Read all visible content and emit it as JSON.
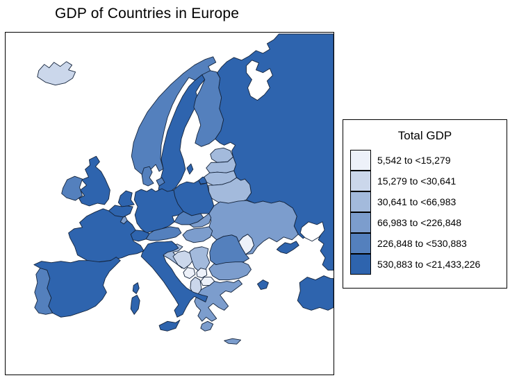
{
  "title": "GDP of Countries in Europe",
  "legend": {
    "title": "Total GDP"
  },
  "styles": {
    "country_border_color": "#14243C",
    "frame_border_color": "#000000",
    "sea_color": "#FFFFFF"
  },
  "chart_data": {
    "type": "choropleth",
    "map": "Europe",
    "title": "GDP of Countries in Europe",
    "legend_title": "Total GDP",
    "legend_position": "right",
    "bins": [
      {
        "label": "5,542 to <15,279",
        "range_min": 5542,
        "range_max": 15279,
        "color": "#EDF1F9"
      },
      {
        "label": "15,279 to <30,641",
        "range_min": 15279,
        "range_max": 30641,
        "color": "#CBD7EB"
      },
      {
        "label": "30,641 to <66,983",
        "range_min": 30641,
        "range_max": 66983,
        "color": "#A3BADC"
      },
      {
        "label": "66,983 to <226,848",
        "range_min": 66983,
        "range_max": 226848,
        "color": "#7C9DCD"
      },
      {
        "label": "226,848 to <530,883",
        "range_min": 226848,
        "range_max": 530883,
        "color": "#5480BD"
      },
      {
        "label": "530,883 to <21,433,226",
        "range_min": 530883,
        "range_max": 21433226,
        "color": "#2E64AE"
      }
    ],
    "regions": [
      {
        "name": "Russia",
        "bin": 6
      },
      {
        "name": "Iceland",
        "bin": 2
      },
      {
        "name": "Norway",
        "bin": 5
      },
      {
        "name": "Sweden",
        "bin": 6
      },
      {
        "name": "Finland",
        "bin": 5
      },
      {
        "name": "Denmark",
        "bin": 5
      },
      {
        "name": "Estonia",
        "bin": 3
      },
      {
        "name": "Latvia",
        "bin": 3
      },
      {
        "name": "Lithuania",
        "bin": 3
      },
      {
        "name": "Belarus",
        "bin": 3
      },
      {
        "name": "Ukraine",
        "bin": 4
      },
      {
        "name": "Moldova",
        "bin": 1
      },
      {
        "name": "Poland",
        "bin": 6
      },
      {
        "name": "Germany",
        "bin": 6
      },
      {
        "name": "Netherlands",
        "bin": 6
      },
      {
        "name": "Belgium",
        "bin": 6
      },
      {
        "name": "Luxembourg",
        "bin": 4
      },
      {
        "name": "United Kingdom",
        "bin": 6
      },
      {
        "name": "Ireland",
        "bin": 5
      },
      {
        "name": "France",
        "bin": 6
      },
      {
        "name": "Switzerland",
        "bin": 6
      },
      {
        "name": "Austria",
        "bin": 5
      },
      {
        "name": "Czechia",
        "bin": 5
      },
      {
        "name": "Slovakia",
        "bin": 4
      },
      {
        "name": "Hungary",
        "bin": 4
      },
      {
        "name": "Slovenia",
        "bin": 3
      },
      {
        "name": "Croatia",
        "bin": 3
      },
      {
        "name": "Bosnia and Herzegovina",
        "bin": 2
      },
      {
        "name": "Serbia",
        "bin": 3
      },
      {
        "name": "Montenegro",
        "bin": 1
      },
      {
        "name": "Kosovo",
        "bin": 1
      },
      {
        "name": "Albania",
        "bin": 2
      },
      {
        "name": "North Macedonia",
        "bin": 1
      },
      {
        "name": "Bulgaria",
        "bin": 4
      },
      {
        "name": "Romania",
        "bin": 5
      },
      {
        "name": "Greece",
        "bin": 4
      },
      {
        "name": "Italy",
        "bin": 6
      },
      {
        "name": "Spain",
        "bin": 6
      },
      {
        "name": "Portugal",
        "bin": 5
      },
      {
        "name": "Turkey",
        "bin": 6
      }
    ]
  }
}
